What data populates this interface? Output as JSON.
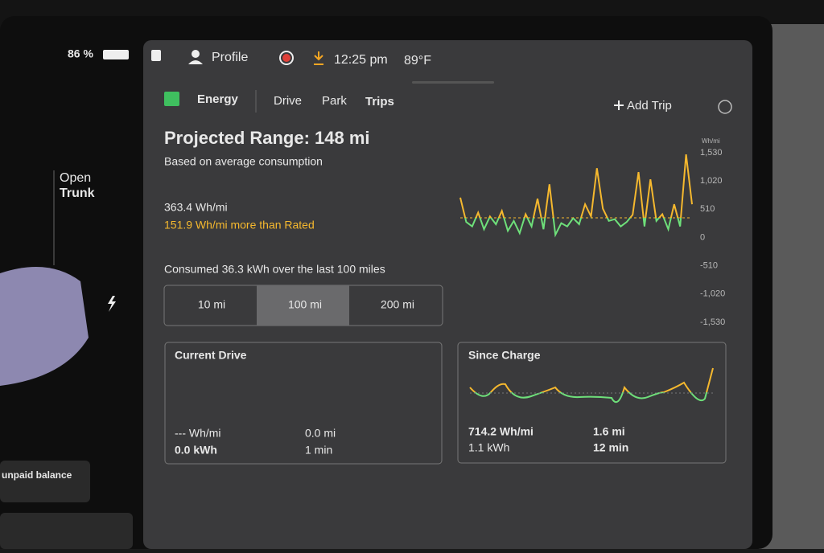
{
  "status_bar": {
    "battery": "86 %",
    "profile": "Profile",
    "time": "12:25 pm",
    "temperature": "89°F"
  },
  "left_panel": {
    "trunk": [
      "Open",
      "Trunk"
    ],
    "notice": "unpaid balance"
  },
  "tabs": [
    "Energy",
    "Drive",
    "Park",
    "Trips"
  ],
  "add_trip": "Add Trip",
  "summary": {
    "title": "Projected Range: 148 mi",
    "subtitle": "Based on average consumption",
    "consumption": "363.4 Wh/mi",
    "comparison": "151.9 Wh/mi more than Rated",
    "consumed": "Consumed 36.3 kWh over the last 100 miles"
  },
  "range_options": [
    "10 mi",
    "100 mi",
    "200 mi"
  ],
  "energy_graph": {
    "type": "line",
    "y_unit": "Wh/mi",
    "ylim": [
      -1530,
      1530
    ],
    "yticks": [
      {
        "value": 1530,
        "label": "1,530"
      },
      {
        "value": 1020,
        "label": "1,020"
      },
      510,
      0,
      -510,
      {
        "value": -1020,
        "label": "-1,020"
      },
      {
        "value": -1530,
        "label": "-1,530"
      }
    ],
    "values": [
      720,
      280,
      200,
      450,
      150,
      380,
      240,
      480,
      120,
      300,
      80,
      420,
      200,
      700,
      150,
      960,
      50,
      260,
      200,
      350,
      240,
      600,
      380,
      1250,
      520,
      300,
      330,
      200,
      280,
      410,
      1180,
      200,
      1050,
      300,
      420,
      150,
      600,
      200,
      1500,
      600
    ]
  },
  "current_drive": {
    "title": "Current Drive",
    "efficiency": "--- Wh/mi",
    "energy": "0.0 kWh",
    "distance": "0.0 mi",
    "duration": "1 min"
  },
  "since_charge": {
    "title": "Since Charge",
    "efficiency": "714.2 Wh/mi",
    "energy": "1.1 kWh",
    "distance": "1.6 mi",
    "duration": "12 min"
  }
}
